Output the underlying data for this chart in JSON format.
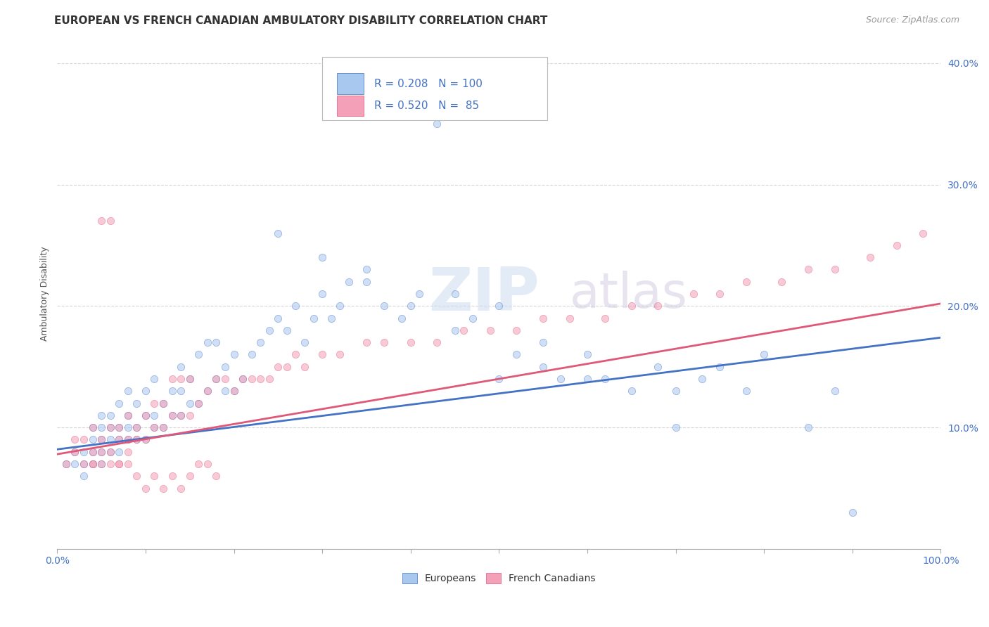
{
  "title": "EUROPEAN VS FRENCH CANADIAN AMBULATORY DISABILITY CORRELATION CHART",
  "source": "Source: ZipAtlas.com",
  "ylabel": "Ambulatory Disability",
  "watermark": "ZIPatlas",
  "legend_r_european": "0.208",
  "legend_n_european": "100",
  "legend_r_french": "0.520",
  "legend_n_french": "85",
  "european_color": "#a8c8f0",
  "french_color": "#f4a0b8",
  "european_line_color": "#4472c4",
  "french_line_color": "#e05878",
  "background_color": "#ffffff",
  "xlim": [
    0,
    1
  ],
  "ylim": [
    0.0,
    0.42
  ],
  "xticks": [
    0.0,
    0.1,
    0.2,
    0.3,
    0.4,
    0.5,
    0.6,
    0.7,
    0.8,
    0.9,
    1.0
  ],
  "yticks": [
    0.0,
    0.1,
    0.2,
    0.3,
    0.4
  ],
  "ytick_labels": [
    "",
    "10.0%",
    "20.0%",
    "30.0%",
    "40.0%"
  ],
  "xtick_labels": [
    "0.0%",
    "",
    "",
    "",
    "",
    "",
    "",
    "",
    "",
    "",
    "100.0%"
  ],
  "eu_line_x0": 0.0,
  "eu_line_y0": 0.082,
  "eu_line_x1": 1.0,
  "eu_line_y1": 0.174,
  "fr_line_x0": 0.0,
  "fr_line_y0": 0.078,
  "fr_line_x1": 1.0,
  "fr_line_y1": 0.202,
  "european_x": [
    0.01,
    0.02,
    0.02,
    0.03,
    0.03,
    0.03,
    0.04,
    0.04,
    0.04,
    0.04,
    0.05,
    0.05,
    0.05,
    0.05,
    0.05,
    0.06,
    0.06,
    0.06,
    0.06,
    0.07,
    0.07,
    0.07,
    0.07,
    0.08,
    0.08,
    0.08,
    0.08,
    0.09,
    0.09,
    0.09,
    0.1,
    0.1,
    0.1,
    0.11,
    0.11,
    0.11,
    0.12,
    0.12,
    0.13,
    0.13,
    0.14,
    0.14,
    0.14,
    0.15,
    0.15,
    0.16,
    0.16,
    0.17,
    0.17,
    0.18,
    0.18,
    0.19,
    0.19,
    0.2,
    0.2,
    0.21,
    0.22,
    0.23,
    0.24,
    0.25,
    0.26,
    0.27,
    0.28,
    0.29,
    0.3,
    0.31,
    0.32,
    0.33,
    0.35,
    0.37,
    0.39,
    0.41,
    0.43,
    0.45,
    0.47,
    0.5,
    0.52,
    0.55,
    0.57,
    0.6,
    0.62,
    0.65,
    0.68,
    0.7,
    0.73,
    0.75,
    0.78,
    0.8,
    0.85,
    0.88,
    0.25,
    0.3,
    0.35,
    0.4,
    0.45,
    0.5,
    0.55,
    0.6,
    0.7,
    0.9
  ],
  "european_y": [
    0.07,
    0.07,
    0.08,
    0.06,
    0.07,
    0.08,
    0.07,
    0.08,
    0.09,
    0.1,
    0.07,
    0.08,
    0.09,
    0.1,
    0.11,
    0.08,
    0.09,
    0.1,
    0.11,
    0.08,
    0.09,
    0.1,
    0.12,
    0.09,
    0.1,
    0.11,
    0.13,
    0.09,
    0.1,
    0.12,
    0.09,
    0.11,
    0.13,
    0.1,
    0.11,
    0.14,
    0.1,
    0.12,
    0.11,
    0.13,
    0.11,
    0.13,
    0.15,
    0.12,
    0.14,
    0.12,
    0.16,
    0.13,
    0.17,
    0.14,
    0.17,
    0.13,
    0.15,
    0.13,
    0.16,
    0.14,
    0.16,
    0.17,
    0.18,
    0.19,
    0.18,
    0.2,
    0.17,
    0.19,
    0.21,
    0.19,
    0.2,
    0.22,
    0.22,
    0.2,
    0.19,
    0.21,
    0.35,
    0.18,
    0.19,
    0.14,
    0.16,
    0.15,
    0.14,
    0.14,
    0.14,
    0.13,
    0.15,
    0.13,
    0.14,
    0.15,
    0.13,
    0.16,
    0.1,
    0.13,
    0.26,
    0.24,
    0.23,
    0.2,
    0.21,
    0.2,
    0.17,
    0.16,
    0.1,
    0.03
  ],
  "french_x": [
    0.01,
    0.02,
    0.02,
    0.03,
    0.03,
    0.04,
    0.04,
    0.04,
    0.05,
    0.05,
    0.05,
    0.06,
    0.06,
    0.06,
    0.07,
    0.07,
    0.07,
    0.08,
    0.08,
    0.08,
    0.09,
    0.09,
    0.1,
    0.1,
    0.11,
    0.11,
    0.12,
    0.12,
    0.13,
    0.13,
    0.14,
    0.14,
    0.15,
    0.15,
    0.16,
    0.17,
    0.18,
    0.19,
    0.2,
    0.21,
    0.22,
    0.23,
    0.24,
    0.25,
    0.26,
    0.27,
    0.28,
    0.3,
    0.32,
    0.35,
    0.37,
    0.4,
    0.43,
    0.46,
    0.49,
    0.52,
    0.55,
    0.58,
    0.62,
    0.65,
    0.68,
    0.72,
    0.75,
    0.78,
    0.82,
    0.85,
    0.88,
    0.92,
    0.95,
    0.98,
    0.08,
    0.09,
    0.1,
    0.11,
    0.12,
    0.13,
    0.14,
    0.15,
    0.16,
    0.17,
    0.18,
    0.06,
    0.07,
    0.05,
    0.04
  ],
  "french_y": [
    0.07,
    0.08,
    0.09,
    0.07,
    0.09,
    0.07,
    0.08,
    0.1,
    0.07,
    0.08,
    0.09,
    0.07,
    0.08,
    0.1,
    0.07,
    0.09,
    0.1,
    0.08,
    0.09,
    0.11,
    0.09,
    0.1,
    0.09,
    0.11,
    0.1,
    0.12,
    0.1,
    0.12,
    0.11,
    0.14,
    0.11,
    0.14,
    0.11,
    0.14,
    0.12,
    0.13,
    0.14,
    0.14,
    0.13,
    0.14,
    0.14,
    0.14,
    0.14,
    0.15,
    0.15,
    0.16,
    0.15,
    0.16,
    0.16,
    0.17,
    0.17,
    0.17,
    0.17,
    0.18,
    0.18,
    0.18,
    0.19,
    0.19,
    0.19,
    0.2,
    0.2,
    0.21,
    0.21,
    0.22,
    0.22,
    0.23,
    0.23,
    0.24,
    0.25,
    0.26,
    0.07,
    0.06,
    0.05,
    0.06,
    0.05,
    0.06,
    0.05,
    0.06,
    0.07,
    0.07,
    0.06,
    0.27,
    0.07,
    0.27,
    0.07
  ],
  "title_fontsize": 11,
  "axis_label_fontsize": 9,
  "tick_fontsize": 10,
  "source_fontsize": 9,
  "legend_fontsize": 11,
  "marker_size": 55,
  "marker_alpha": 0.55
}
